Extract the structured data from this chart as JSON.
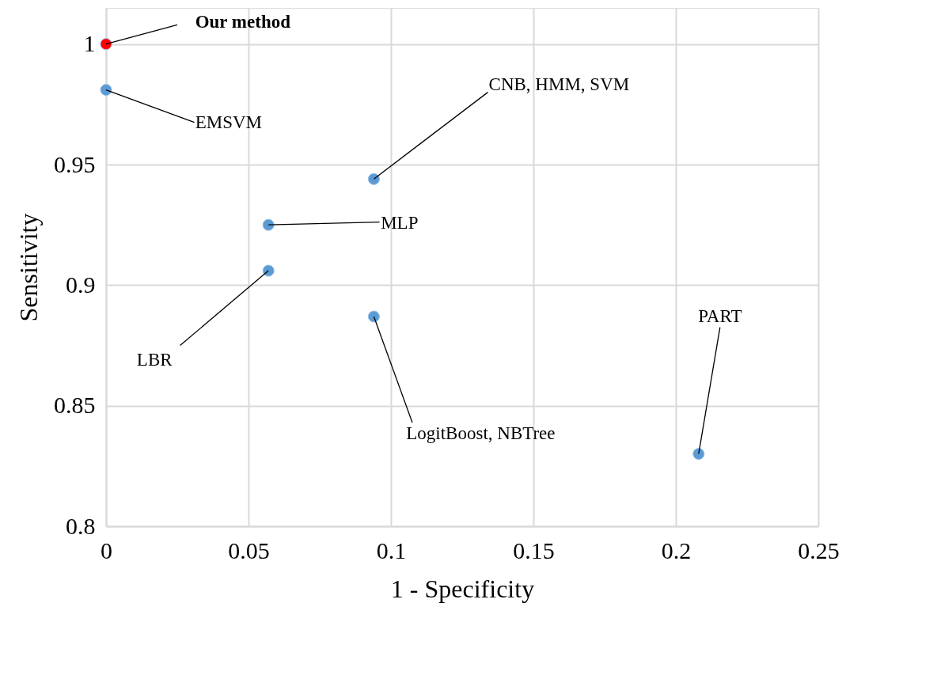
{
  "chart_data": {
    "type": "scatter",
    "xlabel": "1 - Specificity",
    "ylabel": "Sensitivity",
    "x": [
      0,
      0,
      0.094,
      0.057,
      0.057,
      0.094,
      0.208
    ],
    "series": [
      {
        "values": [
          1,
          0.981,
          0.944,
          0.925,
          0.906,
          0.887,
          0.83
        ],
        "colors": [
          "#ff0000",
          "#5b9bd5",
          "#5b9bd5",
          "#5b9bd5",
          "#5b9bd5",
          "#5b9bd5",
          "#5b9bd5"
        ]
      }
    ],
    "xlim": [
      0,
      0.25
    ],
    "ylim": [
      0.8,
      1.015
    ],
    "xticks": [
      0,
      0.05,
      0.1,
      0.15,
      0.2,
      0.25
    ],
    "yticks": [
      0.8,
      0.85,
      0.9,
      0.95,
      1
    ],
    "grid": true,
    "marker": "circle",
    "annotations": [
      {
        "text": "Our method",
        "x": 0,
        "y": 1
      },
      {
        "text": "EMSVM",
        "x": 0,
        "y": 0.981
      },
      {
        "text": "CNB, HMM, SVM",
        "x": 0.094,
        "y": 0.944
      },
      {
        "text": "MLP",
        "x": 0.057,
        "y": 0.925
      },
      {
        "text": "LBR",
        "x": 0.057,
        "y": 0.906
      },
      {
        "text": "LogitBoost, NBTree",
        "x": 0.094,
        "y": 0.887
      },
      {
        "text": "PART",
        "x": 0.208,
        "y": 0.83
      }
    ]
  }
}
